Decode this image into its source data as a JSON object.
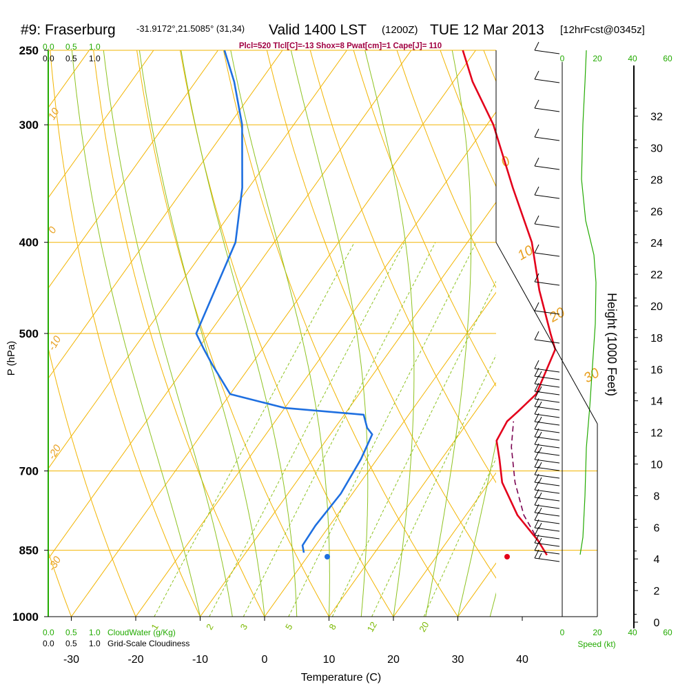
{
  "header": {
    "station": "#9: Fraserburg",
    "coords": "-31.9172°,21.5085° (31,34)",
    "valid": "Valid 1400 LST",
    "valid_z": "(1200Z)",
    "date": "TUE 12 Mar 2013",
    "forecast": "[12hrFcst@0345z]",
    "indices": "Plcl=520 Tlcl[C]=-13 Shox=8 Pwat[cm]=1 Cape[J]= 110"
  },
  "chart_data": {
    "type": "line",
    "subtype": "skew-T log-P sounding",
    "xlabel": "Temperature (C)",
    "ylabel": "P (hPa)",
    "y2label": "Height (1000 Feet)",
    "x_ticks": [
      -30,
      -20,
      -10,
      0,
      10,
      20,
      30,
      40
    ],
    "pressure_ticks": [
      250,
      300,
      400,
      500,
      700,
      850,
      1000
    ],
    "height_ticks": [
      0,
      2,
      4,
      6,
      8,
      10,
      12,
      14,
      16,
      18,
      20,
      22,
      24,
      26,
      28,
      30,
      32
    ],
    "isotherm_labels": [
      "10",
      "0",
      "-10",
      "-20",
      "-30",
      "0",
      "10",
      "20",
      "30"
    ],
    "mixing_ratio_labels": [
      "1",
      "2",
      "3",
      "5",
      "8",
      "12",
      "20"
    ],
    "temperature_profile": [
      {
        "p": 860,
        "t": 37
      },
      {
        "p": 830,
        "t": 34
      },
      {
        "p": 780,
        "t": 28
      },
      {
        "p": 720,
        "t": 22
      },
      {
        "p": 680,
        "t": 19
      },
      {
        "p": 650,
        "t": 16.5
      },
      {
        "p": 620,
        "t": 16
      },
      {
        "p": 605,
        "t": 16.6
      },
      {
        "p": 580,
        "t": 17.5
      },
      {
        "p": 520,
        "t": 15.5
      },
      {
        "p": 500,
        "t": 13
      },
      {
        "p": 450,
        "t": 6.5
      },
      {
        "p": 400,
        "t": 0
      },
      {
        "p": 350,
        "t": -9
      },
      {
        "p": 300,
        "t": -19
      },
      {
        "p": 270,
        "t": -27
      },
      {
        "p": 250,
        "t": -32
      }
    ],
    "dewpoint_profile": [
      {
        "p": 855,
        "t": -1
      },
      {
        "p": 840,
        "t": -2
      },
      {
        "p": 800,
        "t": -2.2
      },
      {
        "p": 740,
        "t": -1.8
      },
      {
        "p": 680,
        "t": -2.5
      },
      {
        "p": 640,
        "t": -3.5
      },
      {
        "p": 630,
        "t": -5
      },
      {
        "p": 610,
        "t": -7
      },
      {
        "p": 600,
        "t": -20
      },
      {
        "p": 580,
        "t": -30
      },
      {
        "p": 540,
        "t": -36
      },
      {
        "p": 520,
        "t": -39
      },
      {
        "p": 500,
        "t": -42
      },
      {
        "p": 400,
        "t": -46
      },
      {
        "p": 350,
        "t": -51
      },
      {
        "p": 300,
        "t": -58
      },
      {
        "p": 270,
        "t": -64
      },
      {
        "p": 250,
        "t": -69
      }
    ],
    "parcel_path": [
      {
        "p": 850,
        "t": 36
      },
      {
        "p": 780,
        "t": 29
      },
      {
        "p": 720,
        "t": 24
      },
      {
        "p": 660,
        "t": 19.5
      },
      {
        "p": 620,
        "t": 17
      }
    ],
    "surface_temperature": {
      "p": 855,
      "t": 37.5
    },
    "surface_dewpoint": {
      "p": 855,
      "t": 9.8
    },
    "cloudwater_axis": {
      "ticks": [
        "0.0",
        "0.5",
        "1.0"
      ],
      "label": "CloudWater (g/Kg)"
    },
    "cloudiness_axis": {
      "ticks": [
        "0.0",
        "0.5",
        "1.0"
      ],
      "label": "Grid-Scale Cloudiness"
    },
    "wind_speed_axis": {
      "ticks": [
        "0",
        "20",
        "40",
        "60"
      ],
      "label": "Speed (kt)"
    },
    "colors": {
      "isotherm": "#f2b400",
      "dry_adiabat": "#f2b400",
      "moist_adiabat": "#8dc21f",
      "mixing_ratio": "#8dc21f",
      "temperature": "#e3001b",
      "dewpoint": "#1e6fe0",
      "parcel": "#7a0050",
      "wind_speed": "#22aa00",
      "axis_green": "#22aa00",
      "indices_text": "#a00040"
    }
  }
}
